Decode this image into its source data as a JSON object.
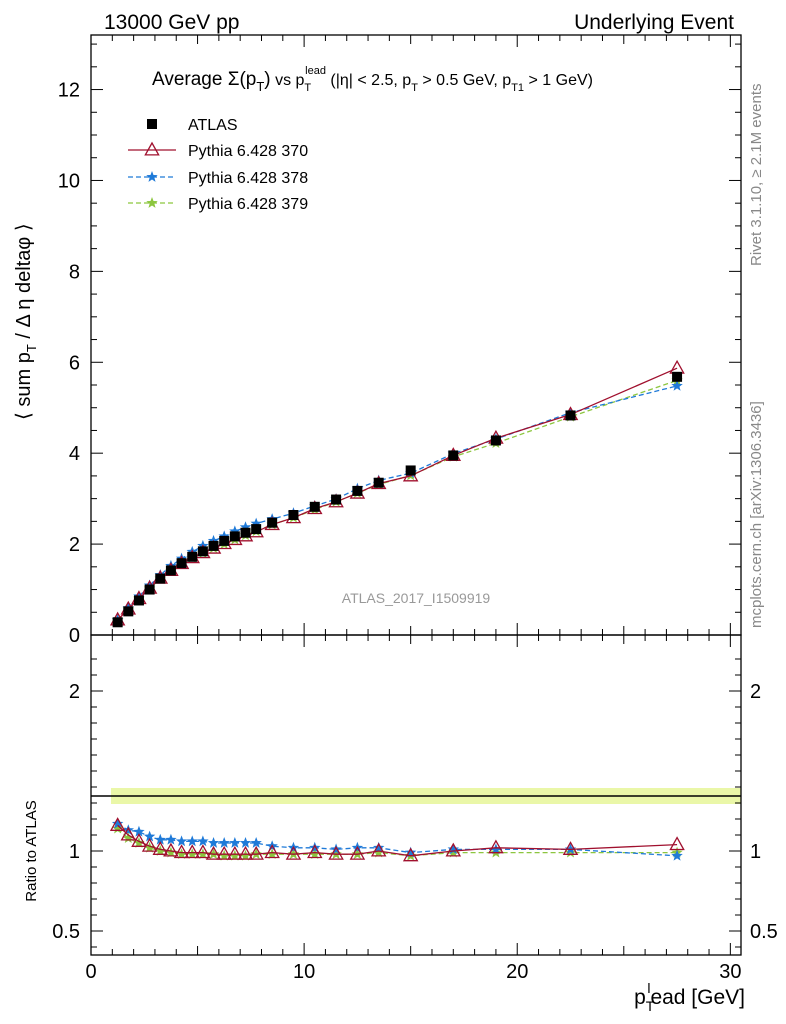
{
  "header": {
    "left": "13000 GeV pp",
    "right": "Underlying Event"
  },
  "side_text": {
    "rivet": "Rivet 3.1.10, ≥ 2.1M events",
    "mcplots": "mcplots.cern.ch [arXiv:1306.3436]"
  },
  "watermark": "ATLAS_2017_I1509919",
  "chart_data": [
    {
      "type": "line",
      "panel": "main",
      "title_parts": {
        "pre": "Average ",
        "sigma": "Σ(p",
        "sigma_sub": "T",
        "sigma_close": ")",
        "vs": " vs p",
        "vs_sub": "T",
        "vs_sup": "lead",
        "cuts": " (|η| < 2.5, p",
        "cuts_sub1": "T",
        "cuts_mid": " > 0.5 GeV, p",
        "cuts_sub2": "T1",
        "cuts_end": " > 1 GeV)"
      },
      "ylabel_parts": {
        "pre": "⟨ sum p",
        "sub": "T",
        "post": " / Δ η deltaφ ⟩"
      },
      "xlim": [
        0,
        30.5
      ],
      "ylim": [
        0,
        13.2
      ],
      "yticks": [
        0,
        2,
        4,
        6,
        8,
        10,
        12
      ],
      "legend_position": "top-left",
      "x": [
        1.25,
        1.75,
        2.25,
        2.75,
        3.25,
        3.75,
        4.25,
        4.75,
        5.25,
        5.75,
        6.25,
        6.75,
        7.25,
        7.75,
        8.5,
        9.5,
        10.5,
        11.5,
        12.5,
        13.5,
        15.0,
        17.0,
        19.0,
        22.5,
        27.5
      ],
      "series": [
        {
          "name": "ATLAS",
          "color": "#000000",
          "marker": "square",
          "values": [
            0.28,
            0.52,
            0.76,
            1.0,
            1.24,
            1.42,
            1.58,
            1.72,
            1.84,
            1.96,
            2.07,
            2.17,
            2.25,
            2.33,
            2.47,
            2.64,
            2.82,
            2.98,
            3.17,
            3.35,
            3.62,
            3.95,
            4.28,
            4.83,
            5.68
          ]
        },
        {
          "name": "Pythia 6.428 370",
          "color": "#a0102e",
          "marker": "triangle-open",
          "line": "solid",
          "values": [
            0.33,
            0.57,
            0.8,
            1.03,
            1.25,
            1.42,
            1.57,
            1.7,
            1.81,
            1.91,
            2.01,
            2.1,
            2.18,
            2.27,
            2.43,
            2.58,
            2.78,
            2.93,
            3.12,
            3.33,
            3.5,
            3.95,
            4.33,
            4.85,
            5.87
          ]
        },
        {
          "name": "Pythia 6.428 378",
          "color": "#1f7ad8",
          "marker": "star",
          "line": "dashed",
          "values": [
            0.33,
            0.59,
            0.85,
            1.09,
            1.32,
            1.52,
            1.68,
            1.83,
            1.96,
            2.07,
            2.17,
            2.28,
            2.37,
            2.45,
            2.55,
            2.68,
            2.84,
            2.99,
            3.22,
            3.4,
            3.56,
            3.99,
            4.31,
            4.89,
            5.48
          ]
        },
        {
          "name": "Pythia 6.428 379",
          "color": "#8cc63f",
          "marker": "star",
          "line": "dashed",
          "values": [
            0.32,
            0.56,
            0.8,
            1.02,
            1.24,
            1.41,
            1.56,
            1.7,
            1.8,
            1.91,
            2.0,
            2.1,
            2.19,
            2.28,
            2.43,
            2.58,
            2.76,
            2.93,
            3.12,
            3.31,
            3.51,
            3.92,
            4.22,
            4.8,
            5.6
          ]
        }
      ]
    },
    {
      "type": "line",
      "panel": "ratio",
      "ylabel": "Ratio to ATLAS",
      "xlabel_parts": {
        "p": "p",
        "sub": "T",
        "sup": "l",
        "post": "ead [GeV]"
      },
      "xlim": [
        0,
        30.5
      ],
      "ylim": [
        0.35,
        2.35
      ],
      "xticks": [
        0,
        10,
        20,
        30
      ],
      "yticks": [
        0.5,
        1,
        2
      ],
      "reference_band": [
        0.98,
        1.02
      ],
      "x": [
        1.25,
        1.75,
        2.25,
        2.75,
        3.25,
        3.75,
        4.25,
        4.75,
        5.25,
        5.75,
        6.25,
        6.75,
        7.25,
        7.75,
        8.5,
        9.5,
        10.5,
        11.5,
        12.5,
        13.5,
        15.0,
        17.0,
        19.0,
        22.5,
        27.5
      ],
      "series": [
        {
          "name": "Pythia 6.428 370",
          "color": "#a0102e",
          "values": [
            1.16,
            1.1,
            1.06,
            1.03,
            1.01,
            1.0,
            0.99,
            0.99,
            0.99,
            0.98,
            0.98,
            0.98,
            0.98,
            0.98,
            0.99,
            0.98,
            0.99,
            0.98,
            0.98,
            1.0,
            0.97,
            1.0,
            1.02,
            1.01,
            1.04
          ]
        },
        {
          "name": "Pythia 6.428 378",
          "color": "#1f7ad8",
          "values": [
            1.17,
            1.13,
            1.12,
            1.09,
            1.07,
            1.07,
            1.06,
            1.06,
            1.06,
            1.05,
            1.05,
            1.05,
            1.05,
            1.05,
            1.03,
            1.02,
            1.02,
            1.01,
            1.02,
            1.02,
            0.99,
            1.01,
            1.01,
            1.01,
            0.97
          ]
        },
        {
          "name": "Pythia 6.428 379",
          "color": "#8cc63f",
          "values": [
            1.14,
            1.08,
            1.05,
            1.02,
            1.0,
            0.99,
            0.98,
            0.98,
            0.98,
            0.98,
            0.97,
            0.97,
            0.97,
            0.98,
            0.98,
            0.98,
            0.98,
            0.98,
            0.98,
            0.99,
            0.97,
            0.99,
            0.99,
            0.99,
            0.99
          ]
        }
      ]
    }
  ]
}
